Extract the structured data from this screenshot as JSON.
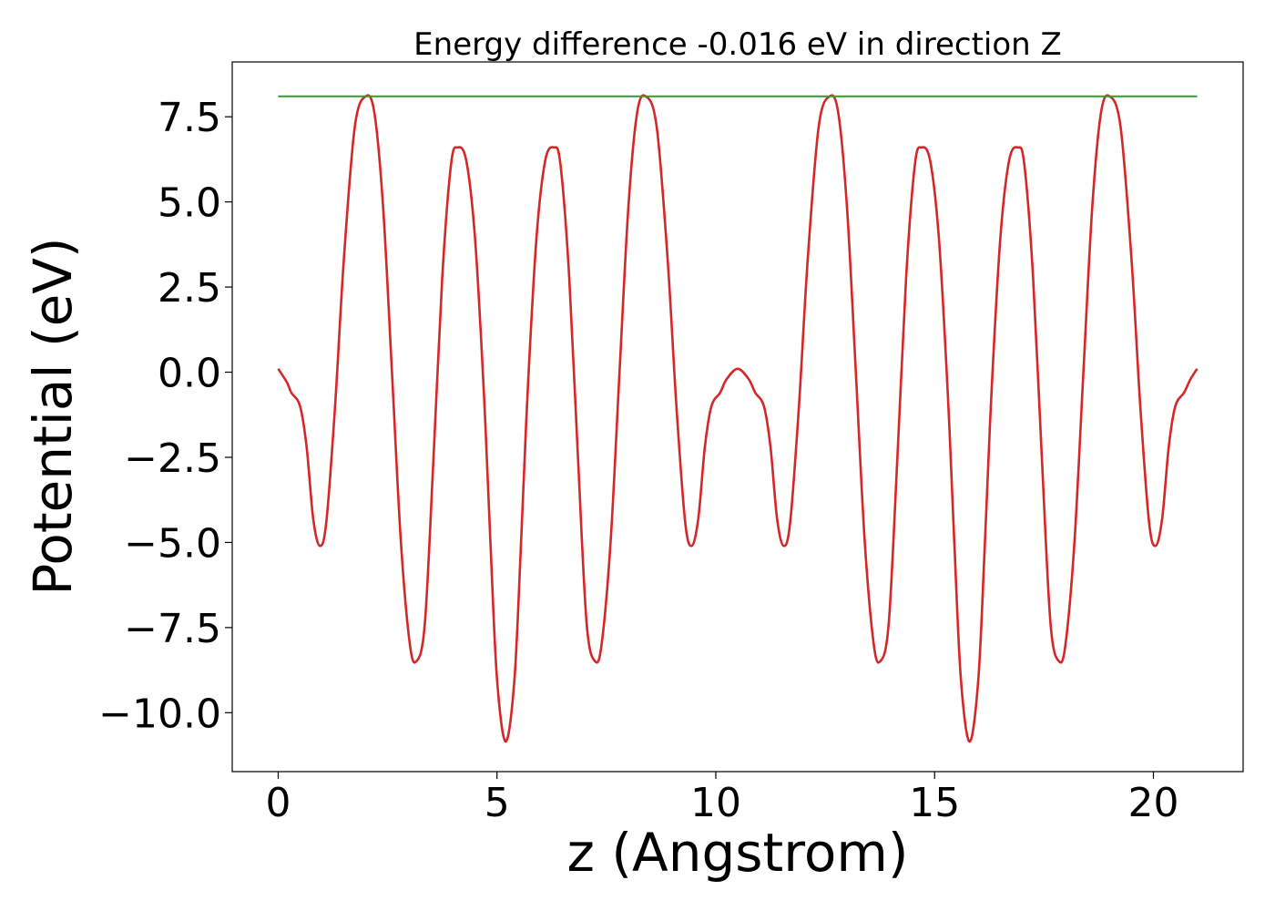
{
  "chart_data": {
    "type": "line",
    "title": "Energy difference -0.016 eV in direction Z",
    "xlabel": "z (Angstrom)",
    "ylabel": "Potential (eV)",
    "xlim": [
      -1.05,
      22.05
    ],
    "ylim": [
      -11.73,
      9.11
    ],
    "xticks": [
      0,
      5,
      10,
      15,
      20
    ],
    "xtick_labels": [
      "0",
      "5",
      "10",
      "15",
      "20"
    ],
    "yticks": [
      7.5,
      5.0,
      2.5,
      0.0,
      -2.5,
      -5.0,
      -7.5,
      -10.0
    ],
    "ytick_labels": [
      "7.5",
      "5.0",
      "2.5",
      "0.0",
      "−2.5",
      "−5.0",
      "−7.5",
      "−10.0"
    ],
    "grid": false,
    "series": [
      {
        "color": "#d62728",
        "points": [
          [
            0.0,
            0.1
          ],
          [
            0.2,
            -0.3
          ],
          [
            0.3,
            -0.6
          ],
          [
            0.5,
            -1.0
          ],
          [
            0.65,
            -2.2
          ],
          [
            0.8,
            -4.3
          ],
          [
            0.95,
            -5.1
          ],
          [
            1.1,
            -4.4
          ],
          [
            1.3,
            -1.0
          ],
          [
            1.5,
            3.3
          ],
          [
            1.75,
            7.2
          ],
          [
            2.0,
            8.1
          ],
          [
            2.2,
            7.6
          ],
          [
            2.4,
            4.8
          ],
          [
            2.6,
            0.0
          ],
          [
            2.8,
            -4.9
          ],
          [
            3.0,
            -7.9
          ],
          [
            3.15,
            -8.5
          ],
          [
            3.35,
            -7.4
          ],
          [
            3.55,
            -2.5
          ],
          [
            3.75,
            2.8
          ],
          [
            3.95,
            6.1
          ],
          [
            4.1,
            6.6
          ],
          [
            4.3,
            6.2
          ],
          [
            4.5,
            3.9
          ],
          [
            4.7,
            -0.6
          ],
          [
            4.85,
            -5.0
          ],
          [
            5.0,
            -9.0
          ],
          [
            5.2,
            -10.85
          ],
          [
            5.4,
            -9.0
          ],
          [
            5.55,
            -5.0
          ],
          [
            5.7,
            -0.6
          ],
          [
            5.9,
            3.9
          ],
          [
            6.1,
            6.2
          ],
          [
            6.3,
            6.6
          ],
          [
            6.45,
            6.1
          ],
          [
            6.65,
            2.8
          ],
          [
            6.85,
            -2.5
          ],
          [
            7.05,
            -7.4
          ],
          [
            7.25,
            -8.5
          ],
          [
            7.4,
            -7.9
          ],
          [
            7.6,
            -4.9
          ],
          [
            7.8,
            0.0
          ],
          [
            8.0,
            4.8
          ],
          [
            8.2,
            7.6
          ],
          [
            8.4,
            8.1
          ],
          [
            8.65,
            7.2
          ],
          [
            8.9,
            3.3
          ],
          [
            9.1,
            -1.0
          ],
          [
            9.3,
            -4.4
          ],
          [
            9.45,
            -5.1
          ],
          [
            9.6,
            -4.3
          ],
          [
            9.75,
            -2.2
          ],
          [
            9.9,
            -1.0
          ],
          [
            10.1,
            -0.6
          ],
          [
            10.25,
            -0.2
          ],
          [
            10.5,
            0.1
          ],
          [
            10.75,
            -0.2
          ],
          [
            10.9,
            -0.6
          ],
          [
            11.1,
            -1.0
          ],
          [
            11.25,
            -2.2
          ],
          [
            11.4,
            -4.3
          ],
          [
            11.55,
            -5.1
          ],
          [
            11.7,
            -4.4
          ],
          [
            11.9,
            -1.0
          ],
          [
            12.1,
            3.3
          ],
          [
            12.35,
            7.2
          ],
          [
            12.6,
            8.1
          ],
          [
            12.8,
            7.6
          ],
          [
            13.0,
            4.8
          ],
          [
            13.2,
            0.0
          ],
          [
            13.4,
            -4.9
          ],
          [
            13.6,
            -7.9
          ],
          [
            13.75,
            -8.5
          ],
          [
            13.95,
            -7.4
          ],
          [
            14.15,
            -2.5
          ],
          [
            14.35,
            2.8
          ],
          [
            14.55,
            6.1
          ],
          [
            14.7,
            6.6
          ],
          [
            14.9,
            6.2
          ],
          [
            15.1,
            3.9
          ],
          [
            15.3,
            -0.6
          ],
          [
            15.45,
            -5.0
          ],
          [
            15.6,
            -9.0
          ],
          [
            15.8,
            -10.85
          ],
          [
            16.0,
            -9.0
          ],
          [
            16.15,
            -5.0
          ],
          [
            16.3,
            -0.6
          ],
          [
            16.5,
            3.9
          ],
          [
            16.7,
            6.2
          ],
          [
            16.9,
            6.6
          ],
          [
            17.05,
            6.1
          ],
          [
            17.25,
            2.8
          ],
          [
            17.45,
            -2.5
          ],
          [
            17.65,
            -7.4
          ],
          [
            17.85,
            -8.5
          ],
          [
            18.0,
            -7.9
          ],
          [
            18.2,
            -4.9
          ],
          [
            18.4,
            0.0
          ],
          [
            18.6,
            4.8
          ],
          [
            18.8,
            7.6
          ],
          [
            19.0,
            8.1
          ],
          [
            19.25,
            7.2
          ],
          [
            19.5,
            3.3
          ],
          [
            19.7,
            -1.0
          ],
          [
            19.9,
            -4.4
          ],
          [
            20.05,
            -5.1
          ],
          [
            20.2,
            -4.3
          ],
          [
            20.35,
            -2.2
          ],
          [
            20.5,
            -1.0
          ],
          [
            20.7,
            -0.6
          ],
          [
            20.85,
            -0.2
          ],
          [
            21.0,
            0.1
          ]
        ]
      },
      {
        "color": "#2ca02c",
        "points": [
          [
            0.0,
            8.1
          ],
          [
            21.0,
            8.1
          ]
        ]
      }
    ]
  }
}
